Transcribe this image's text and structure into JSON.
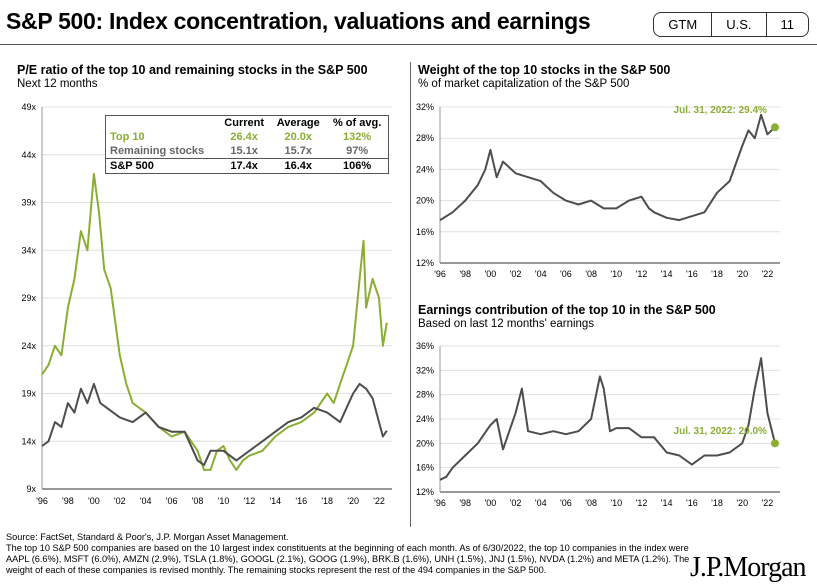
{
  "header": {
    "title": "S&P 500: Index concentration, valuations and earnings",
    "badges": [
      "GTM",
      "U.S.",
      "11"
    ]
  },
  "colors": {
    "top10": "#8aae32",
    "remaining": "#4d4d4d",
    "accent": "#8aae32"
  },
  "table": {
    "headers": [
      "",
      "Current",
      "Average",
      "% of avg."
    ],
    "rows": [
      {
        "label": "Top 10",
        "current": "26.4x",
        "average": "20.0x",
        "pct": "132%",
        "color": "#8aae32"
      },
      {
        "label": "Remaining stocks",
        "current": "15.1x",
        "average": "15.7x",
        "pct": "97%",
        "color": "#666666"
      },
      {
        "label": "S&P 500",
        "current": "17.4x",
        "average": "16.4x",
        "pct": "106%",
        "color": "#000000"
      }
    ]
  },
  "chart_data": [
    {
      "type": "line",
      "title": "P/E ratio of the top 10 and remaining stocks in the S&P 500",
      "subtitle": "Next 12 months",
      "ylim": [
        9,
        49
      ],
      "yticks": [
        "9x",
        "14x",
        "19x",
        "24x",
        "29x",
        "34x",
        "39x",
        "44x",
        "49x"
      ],
      "xticks": [
        "'96",
        "'98",
        "'00",
        "'02",
        "'04",
        "'06",
        "'08",
        "'10",
        "'12",
        "'14",
        "'16",
        "'18",
        "'20",
        "'22"
      ],
      "xlim": [
        1996,
        2023
      ],
      "series": [
        {
          "name": "Top 10",
          "color": "#8aae32",
          "x": [
            1996,
            1996.5,
            1997,
            1997.5,
            1998,
            1998.5,
            1999,
            1999.5,
            2000,
            2000.4,
            2000.8,
            2001.3,
            2002,
            2002.5,
            2003,
            2004,
            2005,
            2006,
            2007,
            2008,
            2008.5,
            2009,
            2009.5,
            2010,
            2010.5,
            2011,
            2011.5,
            2012,
            2013,
            2014,
            2015,
            2016,
            2017,
            2018,
            2018.5,
            2019,
            2019.5,
            2020,
            2020.5,
            2020.8,
            2021,
            2021.5,
            2022,
            2022.3,
            2022.6
          ],
          "y": [
            21,
            22,
            24,
            23,
            28,
            31,
            36,
            34,
            42,
            38,
            32,
            30,
            23,
            20,
            18,
            17,
            15.5,
            14.5,
            15,
            13,
            11,
            11,
            13,
            13.5,
            12,
            11,
            12,
            12.5,
            13,
            14.5,
            15.5,
            16,
            17,
            19,
            18,
            20,
            22,
            24,
            31,
            35,
            28,
            31,
            29,
            24,
            26.4
          ]
        },
        {
          "name": "Remaining stocks",
          "color": "#4d4d4d",
          "x": [
            1996,
            1996.5,
            1997,
            1997.5,
            1998,
            1998.5,
            1999,
            1999.5,
            2000,
            2000.5,
            2001,
            2002,
            2003,
            2004,
            2005,
            2006,
            2007,
            2008,
            2008.5,
            2009,
            2010,
            2011,
            2012,
            2013,
            2014,
            2015,
            2016,
            2017,
            2018,
            2019,
            2020,
            2020.5,
            2021,
            2021.5,
            2022,
            2022.3,
            2022.6
          ],
          "y": [
            13.5,
            14,
            16,
            15.5,
            18,
            17,
            19.5,
            18,
            20,
            18,
            17.5,
            16.5,
            16,
            17,
            15.5,
            15,
            15,
            12,
            11.5,
            13,
            13,
            12,
            13,
            14,
            15,
            16,
            16.5,
            17.5,
            17,
            16,
            19,
            20,
            19.5,
            18.5,
            16,
            14.5,
            15.1
          ]
        }
      ],
      "table_ref": "table"
    },
    {
      "type": "line",
      "title": "Weight of the top 10 stocks in the S&P 500",
      "subtitle": "% of market capitalization of the S&P 500",
      "ylim": [
        12,
        32
      ],
      "yticks": [
        "12%",
        "16%",
        "20%",
        "24%",
        "28%",
        "32%"
      ],
      "xticks": [
        "'96",
        "'98",
        "'00",
        "'02",
        "'04",
        "'06",
        "'08",
        "'10",
        "'12",
        "'14",
        "'16",
        "'18",
        "'20",
        "'22"
      ],
      "xlim": [
        1996,
        2023
      ],
      "annotation": "Jul. 31, 2022: 29.4%",
      "series": [
        {
          "name": "Top 10 weight",
          "color": "#4d4d4d",
          "x": [
            1996,
            1997,
            1998,
            1999,
            1999.6,
            2000,
            2000.5,
            2001,
            2002,
            2003,
            2004,
            2005,
            2006,
            2007,
            2008,
            2009,
            2010,
            2011,
            2012,
            2012.6,
            2013,
            2014,
            2015,
            2016,
            2017,
            2018,
            2019,
            2020,
            2020.5,
            2021,
            2021.5,
            2022,
            2022.6
          ],
          "y": [
            17.5,
            18.5,
            20,
            22,
            24,
            26.5,
            23,
            25,
            23.5,
            23,
            22.5,
            21,
            20,
            19.5,
            20,
            19,
            19,
            20,
            20.5,
            19,
            18.5,
            17.8,
            17.5,
            18,
            18.5,
            21,
            22.5,
            27,
            29,
            28,
            31,
            28.5,
            29.4
          ]
        }
      ]
    },
    {
      "type": "line",
      "title": "Earnings contribution of the top 10 in the S&P 500",
      "subtitle": "Based on last 12 months' earnings",
      "ylim": [
        12,
        36
      ],
      "yticks": [
        "12%",
        "16%",
        "20%",
        "24%",
        "28%",
        "32%",
        "36%"
      ],
      "xticks": [
        "'96",
        "'98",
        "'00",
        "'02",
        "'04",
        "'06",
        "'08",
        "'10",
        "'12",
        "'14",
        "'16",
        "'18",
        "'20",
        "'22"
      ],
      "xlim": [
        1996,
        2023
      ],
      "annotation": "Jul. 31, 2022: 20.0%",
      "series": [
        {
          "name": "Earnings contribution",
          "color": "#4d4d4d",
          "x": [
            1996,
            1996.5,
            1997,
            1998,
            1999,
            2000,
            2000.5,
            2001,
            2002,
            2002.5,
            2003,
            2004,
            2005,
            2006,
            2007,
            2008,
            2008.7,
            2009,
            2009.5,
            2010,
            2011,
            2012,
            2013,
            2014,
            2015,
            2016,
            2017,
            2018,
            2019,
            2020,
            2020.5,
            2021,
            2021.5,
            2022,
            2022.6
          ],
          "y": [
            14,
            14.5,
            16,
            18,
            20,
            23,
            24,
            19,
            25,
            29,
            22,
            21.5,
            22,
            21.5,
            22,
            24,
            31,
            29,
            22,
            22.5,
            22.5,
            21,
            21,
            18.5,
            18,
            16.5,
            18,
            18,
            18.5,
            20,
            23,
            29,
            34,
            25,
            20
          ]
        }
      ]
    }
  ],
  "footer": {
    "source": "Source: FactSet, Standard & Poor's, J.P. Morgan Asset Management.",
    "note": "The top 10 S&P 500 companies are based on the 10 largest index constituents at the beginning of each month. As of 6/30/2022, the top 10 companies in the index were AAPL (6.6%), MSFT (6.0%), AMZN (2.9%), TSLA (1.8%), GOOGL (2.1%), GOOG (1.9%), BRK.B (1.6%), UNH (1.5%), JNJ (1.5%), NVDA (1.2%) and META (1.2%). The weight of each of these companies is revised monthly. The remaining stocks represent the rest of the 494 companies in the S&P 500.",
    "logo": "J.P.Morgan"
  }
}
